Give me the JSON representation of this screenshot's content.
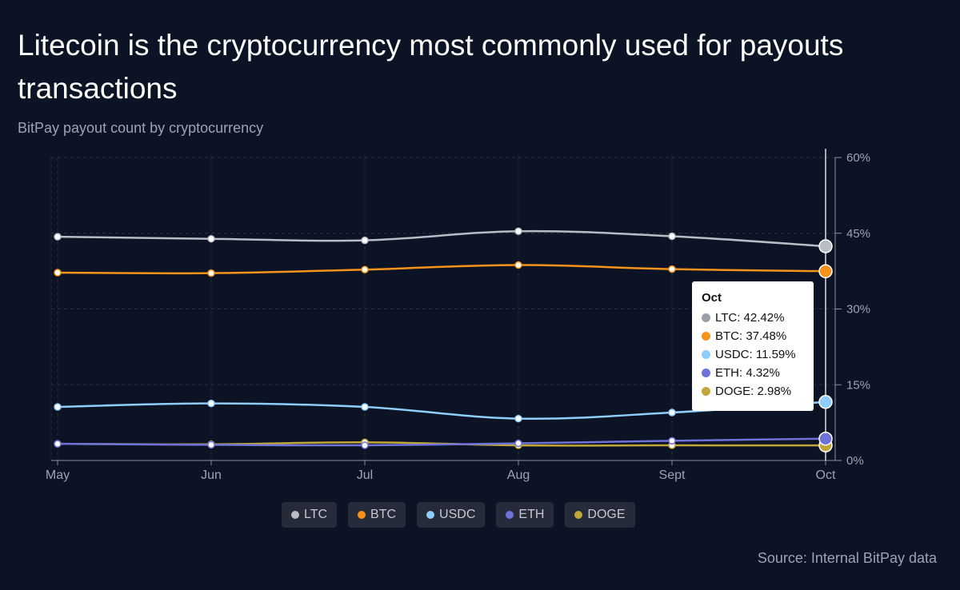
{
  "title": "Litecoin is the cryptocurrency most commonly used for payouts transactions",
  "subtitle": "BitPay payout count by cryptocurrency",
  "source": "Source: Internal BitPay data",
  "colors": {
    "background": "#0b1324",
    "grid": "#2a3346",
    "axis_text": "#9aa4b5"
  },
  "chart_data": {
    "type": "line",
    "title": "Litecoin is the cryptocurrency most commonly used for payouts transactions",
    "subtitle": "BitPay payout count by cryptocurrency",
    "categories": [
      "May",
      "Jun",
      "Jul",
      "Aug",
      "Sept",
      "Oct"
    ],
    "ylim": [
      0,
      60
    ],
    "yticks": [
      "0%",
      "15%",
      "30%",
      "45%",
      "60%"
    ],
    "ytick_values": [
      0,
      15,
      30,
      45,
      60
    ],
    "y_axis_side": "right",
    "grid": true,
    "legend_position": "bottom",
    "series": [
      {
        "name": "LTC",
        "color": "#b8bcc4",
        "values": [
          44.3,
          43.9,
          43.6,
          45.4,
          44.4,
          42.42
        ]
      },
      {
        "name": "BTC",
        "color": "#f7931a",
        "values": [
          37.2,
          37.1,
          37.8,
          38.7,
          37.9,
          37.48
        ]
      },
      {
        "name": "USDC",
        "color": "#8ecdfc",
        "values": [
          10.6,
          11.3,
          10.6,
          8.3,
          9.5,
          11.59
        ]
      },
      {
        "name": "ETH",
        "color": "#6f72d9",
        "values": [
          3.3,
          3.1,
          3.0,
          3.4,
          3.9,
          4.32
        ]
      },
      {
        "name": "DOGE",
        "color": "#c2a637",
        "values": [
          3.3,
          3.2,
          3.6,
          3.0,
          3.0,
          2.98
        ]
      }
    ]
  },
  "tooltip": {
    "title": "Oct",
    "rows": [
      {
        "text": "LTC: 42.42%",
        "color": "#9ba0a8"
      },
      {
        "text": "BTC: 37.48%",
        "color": "#f7931a"
      },
      {
        "text": "USDC: 11.59%",
        "color": "#8ecdfc"
      },
      {
        "text": "ETH: 4.32%",
        "color": "#6f72d9"
      },
      {
        "text": "DOGE: 2.98%",
        "color": "#c2a637"
      }
    ]
  },
  "legend": [
    {
      "label": "LTC",
      "color": "#b8bcc4"
    },
    {
      "label": "BTC",
      "color": "#f7931a"
    },
    {
      "label": "USDC",
      "color": "#8ecdfc"
    },
    {
      "label": "ETH",
      "color": "#6f72d9"
    },
    {
      "label": "DOGE",
      "color": "#c2a637"
    }
  ]
}
